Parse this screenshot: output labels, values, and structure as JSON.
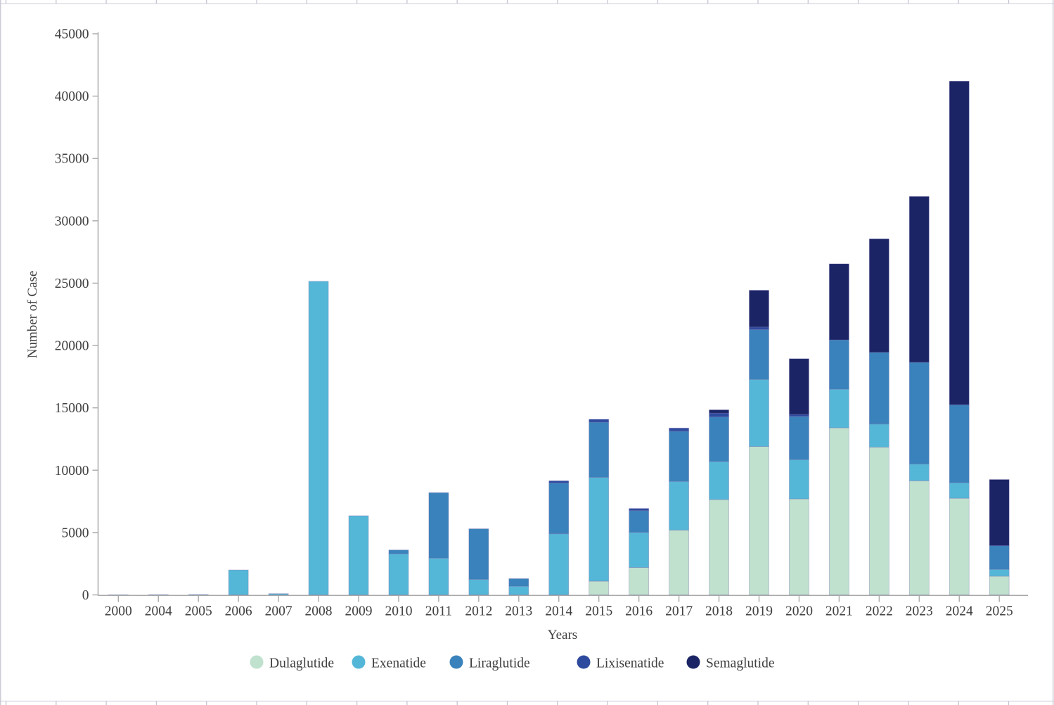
{
  "page": {
    "background": "#ffffff",
    "edge_line_color": "#d6d6e0",
    "edge_tick_color": "#c6c6d2"
  },
  "chart_data": {
    "type": "bar",
    "stacked": true,
    "title": "",
    "xlabel": "Years",
    "ylabel": "Number of Case",
    "categories": [
      "2000",
      "2004",
      "2005",
      "2006",
      "2007",
      "2008",
      "2009",
      "2010",
      "2011",
      "2012",
      "2013",
      "2014",
      "2015",
      "2016",
      "2017",
      "2018",
      "2019",
      "2020",
      "2021",
      "2022",
      "2023",
      "2024",
      "2025"
    ],
    "series": [
      {
        "name": "Dulaglutide",
        "color": "#bfe1ce",
        "values": [
          0,
          0,
          0,
          0,
          0,
          0,
          0,
          0,
          0,
          0,
          0,
          0,
          1100,
          2200,
          5200,
          7650,
          11900,
          7700,
          13400,
          11850,
          9150,
          7750,
          1500
        ]
      },
      {
        "name": "Exenatide",
        "color": "#55b7d8",
        "values": [
          10,
          20,
          30,
          2000,
          100,
          25150,
          6350,
          3300,
          2950,
          1250,
          700,
          4900,
          8330,
          2820,
          3900,
          3050,
          5380,
          3150,
          3100,
          1850,
          1350,
          1250,
          550
        ]
      },
      {
        "name": "Liraglutide",
        "color": "#3a82bb",
        "values": [
          0,
          0,
          0,
          0,
          0,
          0,
          0,
          300,
          5250,
          4050,
          600,
          4080,
          4420,
          1740,
          4030,
          3580,
          4000,
          3470,
          3950,
          5750,
          8150,
          6250,
          1900
        ]
      },
      {
        "name": "Lixisenatide",
        "color": "#2e4a9e",
        "values": [
          0,
          0,
          0,
          0,
          0,
          0,
          0,
          0,
          0,
          0,
          0,
          170,
          230,
          170,
          250,
          300,
          200,
          150,
          0,
          0,
          0,
          0,
          0
        ]
      },
      {
        "name": "Semaglutide",
        "color": "#1b2566",
        "values": [
          0,
          0,
          0,
          0,
          0,
          0,
          0,
          0,
          0,
          0,
          0,
          0,
          0,
          0,
          0,
          260,
          2950,
          4470,
          6100,
          9100,
          13300,
          25950,
          5300
        ]
      }
    ],
    "ylim": [
      0,
      45000
    ],
    "ytick_step": 5000,
    "yticks": [
      "0",
      "5000",
      "10000",
      "15000",
      "20000",
      "25000",
      "30000",
      "35000",
      "40000",
      "45000"
    ],
    "grid": false,
    "legend_position": "bottom",
    "axis_color": "#a9a9a9",
    "text_color": "#404040",
    "bar_outline_color": "rgba(122,112,172,0.45)"
  }
}
